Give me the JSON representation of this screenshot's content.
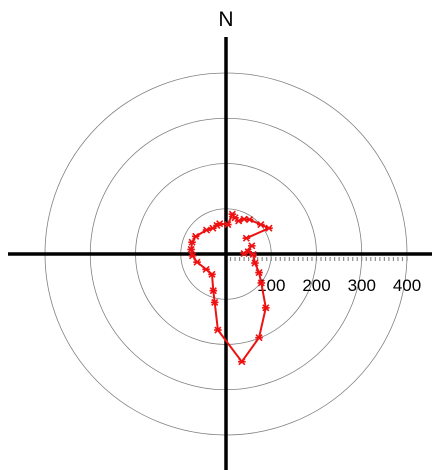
{
  "chart_data": {
    "type": "polar-line",
    "north_label": "N",
    "rings": [
      100,
      200,
      300,
      400
    ],
    "tick_labels": [
      "100",
      "200",
      "300",
      "400"
    ],
    "minor_tick_step": 20,
    "grid": true,
    "colors": {
      "series": "#ee1111",
      "axes": "#000000",
      "rings": "#808080"
    },
    "series": [
      {
        "points": [
          {
            "x": 45,
            "y": 35
          },
          {
            "x": 95,
            "y": 57
          },
          {
            "x": 77,
            "y": 65
          },
          {
            "x": 52,
            "y": 76
          },
          {
            "x": 40,
            "y": 77
          },
          {
            "x": 28,
            "y": 73
          },
          {
            "x": 20,
            "y": 80
          },
          {
            "x": 14,
            "y": 88
          },
          {
            "x": 4,
            "y": 65
          },
          {
            "x": -14,
            "y": 67
          },
          {
            "x": -20,
            "y": 63
          },
          {
            "x": -29,
            "y": 57
          },
          {
            "x": -43,
            "y": 53
          },
          {
            "x": -67,
            "y": 39
          },
          {
            "x": -75,
            "y": 26
          },
          {
            "x": -77,
            "y": 10
          },
          {
            "x": -74,
            "y": -4
          },
          {
            "x": -64,
            "y": -18
          },
          {
            "x": -44,
            "y": -34
          },
          {
            "x": -31,
            "y": -45
          },
          {
            "x": -28,
            "y": -81
          },
          {
            "x": -25,
            "y": -107
          },
          {
            "x": -18,
            "y": -168
          },
          {
            "x": 35,
            "y": -238
          },
          {
            "x": 73,
            "y": -185
          },
          {
            "x": 88,
            "y": -119
          },
          {
            "x": 78,
            "y": -64
          },
          {
            "x": 73,
            "y": -41
          },
          {
            "x": 64,
            "y": -20
          },
          {
            "x": 60,
            "y": -1
          },
          {
            "x": 49,
            "y": 5
          },
          {
            "x": 40,
            "y": 1
          },
          {
            "x": 57,
            "y": 18
          }
        ]
      }
    ]
  }
}
